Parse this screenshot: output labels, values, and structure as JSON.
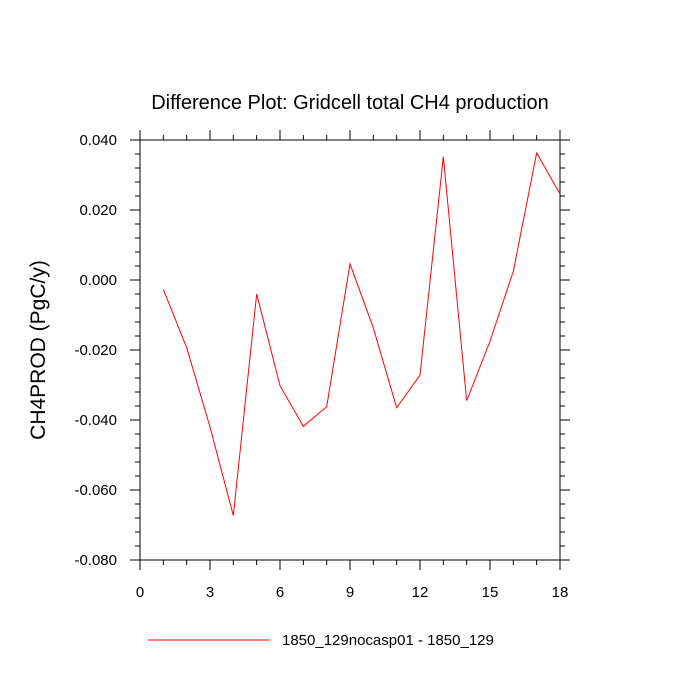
{
  "chart_data": {
    "type": "line",
    "title": "Difference Plot: Gridcell total CH4 production",
    "xlabel": "",
    "ylabel": "CH4PROD  (PgC/y)",
    "xlim": [
      0,
      18
    ],
    "ylim": [
      -0.08,
      0.04
    ],
    "xticks": [
      0,
      3,
      6,
      9,
      12,
      15,
      18
    ],
    "xtick_labels": [
      "0",
      "3",
      "6",
      "9",
      "12",
      "15",
      "18"
    ],
    "yticks": [
      -0.08,
      -0.06,
      -0.04,
      -0.02,
      0.0,
      0.02,
      0.04
    ],
    "ytick_labels": [
      "-0.080",
      "-0.060",
      "-0.040",
      "-0.020",
      "0.000",
      "0.020",
      "0.040"
    ],
    "grid": false,
    "legend_position": "bottom",
    "series": [
      {
        "name": "1850_129nocasp01 - 1850_129",
        "color": "#ff0000",
        "x": [
          1,
          2,
          3,
          4,
          5,
          6,
          7,
          8,
          9,
          10,
          11,
          12,
          13,
          14,
          15,
          16,
          17,
          18
        ],
        "y": [
          -0.0027,
          -0.0193,
          -0.042,
          -0.0673,
          -0.004,
          -0.0302,
          -0.0418,
          -0.0362,
          0.0046,
          -0.0137,
          -0.0365,
          -0.0272,
          0.0352,
          -0.0345,
          -0.0175,
          0.0025,
          0.0363,
          0.0246
        ]
      }
    ]
  }
}
